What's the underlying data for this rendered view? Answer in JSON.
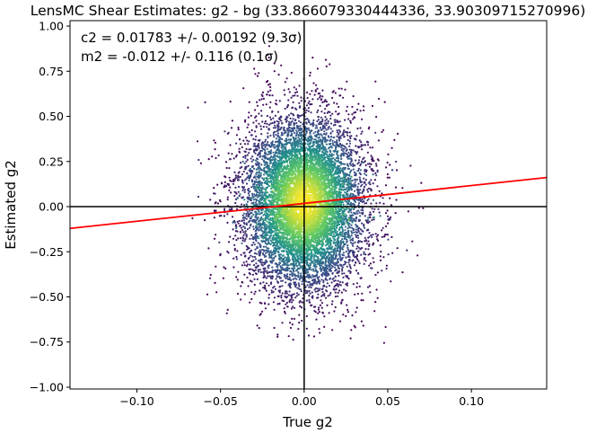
{
  "chart_data": {
    "type": "scatter",
    "title": "LensMC Shear Estimates: g2  - bg (33.866079330444336, 33.90309715270996)",
    "xlabel": "True g2",
    "ylabel": "Estimated g2",
    "xlim": [
      -0.14,
      0.145
    ],
    "ylim": [
      -1.01,
      1.03
    ],
    "x_ticks": [
      -0.1,
      -0.05,
      0.0,
      0.05,
      0.1
    ],
    "x_tick_labels": [
      "−0.10",
      "−0.05",
      "0.00",
      "0.05",
      "0.10"
    ],
    "y_ticks": [
      -1.0,
      -0.75,
      -0.5,
      -0.25,
      0.0,
      0.25,
      0.5,
      0.75,
      1.0
    ],
    "y_tick_labels": [
      "−1.00",
      "−0.75",
      "−0.50",
      "−0.25",
      "0.00",
      "0.25",
      "0.50",
      "0.75",
      "1.00"
    ],
    "annotations": [
      "c2 = 0.01783 +/- 0.00192 (9.3σ)",
      "m2 = -0.012 +/- 0.116 (0.1σ)"
    ],
    "fit_line": {
      "slope": 0.988,
      "intercept": 0.01783,
      "color": "#ff0000"
    },
    "reference_lines": {
      "x": 0.0,
      "y": 0.0,
      "color": "#000000"
    },
    "point_distribution": {
      "x_mean": 0.0,
      "x_std": 0.018,
      "y_mean": 0.02,
      "y_std": 0.24,
      "colormap": "viridis (density)"
    },
    "grid": false,
    "colors": {
      "low_density": "#440154",
      "mid_density": "#21918c",
      "high_density": "#fde725"
    }
  }
}
